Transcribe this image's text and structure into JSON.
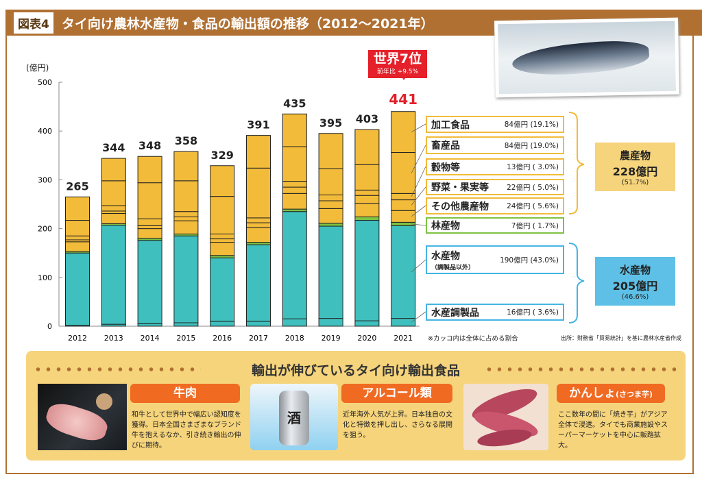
{
  "header": {
    "figure_label": "図表4",
    "title": "タイ向け農林水産物・食品の輸出額の推移（2012〜2021年）"
  },
  "callout": {
    "rank": "世界7位",
    "yoy": "前年比 +9.5%"
  },
  "colors": {
    "agri": "#f2bb3a",
    "forest": "#7dc243",
    "fish": "#3fbfbd",
    "highlight": "#e5202a",
    "accent": "#b07032"
  },
  "chart_data": {
    "type": "bar",
    "stacked": true,
    "ylabel": "(億円)",
    "ylim": [
      0,
      500
    ],
    "yticks": [
      "0",
      "100",
      "200",
      "300",
      "400",
      "500"
    ],
    "categories": [
      "2012",
      "2013",
      "2014",
      "2015",
      "2016",
      "2017",
      "2018",
      "2019",
      "2020",
      "2021"
    ],
    "totals": [
      "265",
      "344",
      "348",
      "358",
      "329",
      "391",
      "435",
      "395",
      "403",
      "441"
    ],
    "series": [
      {
        "name": "水産調製品",
        "values": [
          2,
          4,
          5,
          7,
          10,
          10,
          15,
          16,
          11,
          16
        ]
      },
      {
        "name": "水産物（調製品以外）",
        "values": [
          148,
          203,
          171,
          178,
          130,
          157,
          220,
          189,
          206,
          190
        ]
      },
      {
        "name": "林産物",
        "values": [
          3,
          3,
          4,
          4,
          5,
          5,
          5,
          6,
          7,
          7
        ]
      },
      {
        "name": "その他農産物",
        "values": [
          20,
          21,
          20,
          27,
          27,
          30,
          32,
          30,
          28,
          24
        ]
      },
      {
        "name": "野菜・果実等",
        "values": [
          4,
          5,
          6,
          8,
          7,
          10,
          13,
          16,
          16,
          22
        ]
      },
      {
        "name": "穀物等",
        "values": [
          8,
          11,
          14,
          11,
          10,
          10,
          12,
          12,
          11,
          13
        ]
      },
      {
        "name": "畜産品",
        "values": [
          32,
          51,
          74,
          63,
          77,
          102,
          71,
          54,
          52,
          84
        ]
      },
      {
        "name": "加工食品",
        "values": [
          48,
          46,
          54,
          60,
          63,
          67,
          67,
          72,
          72,
          84
        ]
      }
    ]
  },
  "legend": [
    {
      "name": "加工食品",
      "value": "84億円 (19.1%)"
    },
    {
      "name": "畜産品",
      "value": "84億円 (19.0%)"
    },
    {
      "name": "穀物等",
      "value": "13億円 (  3.0%)"
    },
    {
      "name": "野菜・果実等",
      "value": "22億円 (  5.0%)"
    },
    {
      "name": "その他農産物",
      "value": "24億円 (  5.6%)"
    },
    {
      "name": "林産物",
      "value": "7億円 (  1.7%)"
    },
    {
      "name": "水産物",
      "sub": "（調製品以外）",
      "value": "190億円 (43.0%)"
    },
    {
      "name": "水産調製品",
      "value": "16億円 (  3.6%)"
    }
  ],
  "summary": {
    "agri": {
      "title": "農産物",
      "amount": "228億円",
      "share": "(51.7%)"
    },
    "fish": {
      "title": "水産物",
      "amount": "205億円",
      "share": "(46.6%)"
    }
  },
  "notes": {
    "paren": "※カッコ内は全体に占める割合",
    "source": "出所：財務省「貿易統計」を基に農林水産省作成"
  },
  "panel": {
    "title": "輸出が伸びているタイ向け輸出食品",
    "items": [
      {
        "label": "牛肉",
        "desc": "和牛として世界中で幅広い認知度を獲得。日本全国さまざまなブランド牛を抱えるなか、引き続き輸出の伸びに期待。"
      },
      {
        "label": "アルコール類",
        "desc": "近年海外人気が上昇。日本独自の文化と特徴を押し出し、さらなる展開を狙う。",
        "can_text": "酒"
      },
      {
        "label": "かんしょ",
        "label_sub": "(さつま芋)",
        "desc": "ここ数年の間に「焼き芋」がアジア全体で浸透。タイでも商業施設やスーパーマーケットを中心に販路拡大。"
      }
    ]
  }
}
